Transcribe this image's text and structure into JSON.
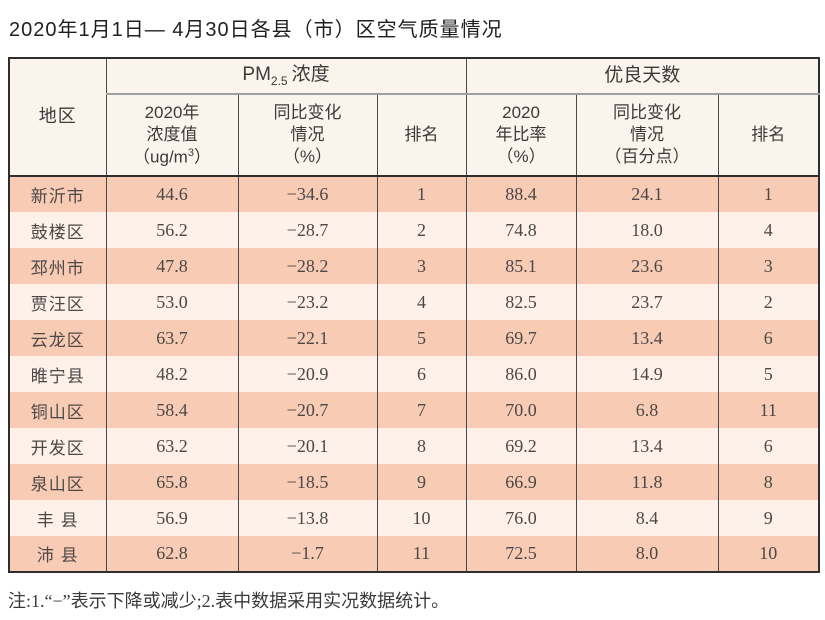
{
  "title": "2020年1月1日— 4月30日各县（市）区空气质量情况",
  "colors": {
    "row_odd": "#f8cbb4",
    "row_even": "#fdf1ea",
    "header_bg": "#faf4ed",
    "border_dark": "#2f2f2f",
    "border_gray": "#9f9f9f",
    "text": "#4c4846"
  },
  "table": {
    "header": {
      "region": "地区",
      "pm_group": {
        "prefix": "PM",
        "sub": "2.5",
        "suffix": "浓度"
      },
      "good_group": "优良天数",
      "pm_conc": {
        "line1": "2020年",
        "line2": "浓度值",
        "line3_pre": "（ug/m",
        "line3_sup": "3",
        "line3_post": "）"
      },
      "pm_change": {
        "line1": "同比变化",
        "line2": "情况",
        "line3": "（%）"
      },
      "pm_rank": "排名",
      "good_ratio": {
        "line1": "2020",
        "line2": "年比率",
        "line3": "（%）"
      },
      "good_change": {
        "line1": "同比变化",
        "line2": "情况",
        "line3": "（百分点）"
      },
      "good_rank": "排名"
    },
    "rows": [
      {
        "region": "新沂市",
        "pm_value": "44.6",
        "pm_change": "−34.6",
        "pm_rank": "1",
        "good_ratio": "88.4",
        "good_change": "24.1",
        "good_rank": "1"
      },
      {
        "region": "鼓楼区",
        "pm_value": "56.2",
        "pm_change": "−28.7",
        "pm_rank": "2",
        "good_ratio": "74.8",
        "good_change": "18.0",
        "good_rank": "4"
      },
      {
        "region": "邳州市",
        "pm_value": "47.8",
        "pm_change": "−28.2",
        "pm_rank": "3",
        "good_ratio": "85.1",
        "good_change": "23.6",
        "good_rank": "3"
      },
      {
        "region": "贾汪区",
        "pm_value": "53.0",
        "pm_change": "−23.2",
        "pm_rank": "4",
        "good_ratio": "82.5",
        "good_change": "23.7",
        "good_rank": "2"
      },
      {
        "region": "云龙区",
        "pm_value": "63.7",
        "pm_change": "−22.1",
        "pm_rank": "5",
        "good_ratio": "69.7",
        "good_change": "13.4",
        "good_rank": "6"
      },
      {
        "region": "睢宁县",
        "pm_value": "48.2",
        "pm_change": "−20.9",
        "pm_rank": "6",
        "good_ratio": "86.0",
        "good_change": "14.9",
        "good_rank": "5"
      },
      {
        "region": "铜山区",
        "pm_value": "58.4",
        "pm_change": "−20.7",
        "pm_rank": "7",
        "good_ratio": "70.0",
        "good_change": "6.8",
        "good_rank": "11"
      },
      {
        "region": "开发区",
        "pm_value": "63.2",
        "pm_change": "−20.1",
        "pm_rank": "8",
        "good_ratio": "69.2",
        "good_change": "13.4",
        "good_rank": "6"
      },
      {
        "region": "泉山区",
        "pm_value": "65.8",
        "pm_change": "−18.5",
        "pm_rank": "9",
        "good_ratio": "66.9",
        "good_change": "11.8",
        "good_rank": "8"
      },
      {
        "region": "丰 县",
        "pm_value": "56.9",
        "pm_change": "−13.8",
        "pm_rank": "10",
        "good_ratio": "76.0",
        "good_change": "8.4",
        "good_rank": "9"
      },
      {
        "region": "沛 县",
        "pm_value": "62.8",
        "pm_change": "−1.7",
        "pm_rank": "11",
        "good_ratio": "72.5",
        "good_change": "8.0",
        "good_rank": "10"
      }
    ]
  },
  "note": "注:1.“−”表示下降或减少;2.表中数据采用实况数据统计。",
  "chart_data": {
    "type": "table",
    "title": "2020年1月1日— 4月30日各县（市）区空气质量情况",
    "column_groups": [
      "地区",
      "PM2.5浓度",
      "优良天数"
    ],
    "columns": [
      "地区",
      "PM2.5浓度 2020年浓度值（ug/m3）",
      "PM2.5浓度 同比变化情况（%）",
      "PM2.5浓度 排名",
      "优良天数 2020年比率（%）",
      "优良天数 同比变化情况（百分点）",
      "优良天数 排名"
    ],
    "rows": [
      [
        "新沂市",
        44.6,
        -34.6,
        1,
        88.4,
        24.1,
        1
      ],
      [
        "鼓楼区",
        56.2,
        -28.7,
        2,
        74.8,
        18.0,
        4
      ],
      [
        "邳州市",
        47.8,
        -28.2,
        3,
        85.1,
        23.6,
        3
      ],
      [
        "贾汪区",
        53.0,
        -23.2,
        4,
        82.5,
        23.7,
        2
      ],
      [
        "云龙区",
        63.7,
        -22.1,
        5,
        69.7,
        13.4,
        6
      ],
      [
        "睢宁县",
        48.2,
        -20.9,
        6,
        86.0,
        14.9,
        5
      ],
      [
        "铜山区",
        58.4,
        -20.7,
        7,
        70.0,
        6.8,
        11
      ],
      [
        "开发区",
        63.2,
        -20.1,
        8,
        69.2,
        13.4,
        6
      ],
      [
        "泉山区",
        65.8,
        -18.5,
        9,
        66.9,
        11.8,
        8
      ],
      [
        "丰县",
        56.9,
        -13.8,
        10,
        76.0,
        8.4,
        9
      ],
      [
        "沛县",
        62.8,
        -1.7,
        11,
        72.5,
        8.0,
        10
      ]
    ],
    "note": "注:1.“−”表示下降或减少;2.表中数据采用实况数据统计。"
  }
}
